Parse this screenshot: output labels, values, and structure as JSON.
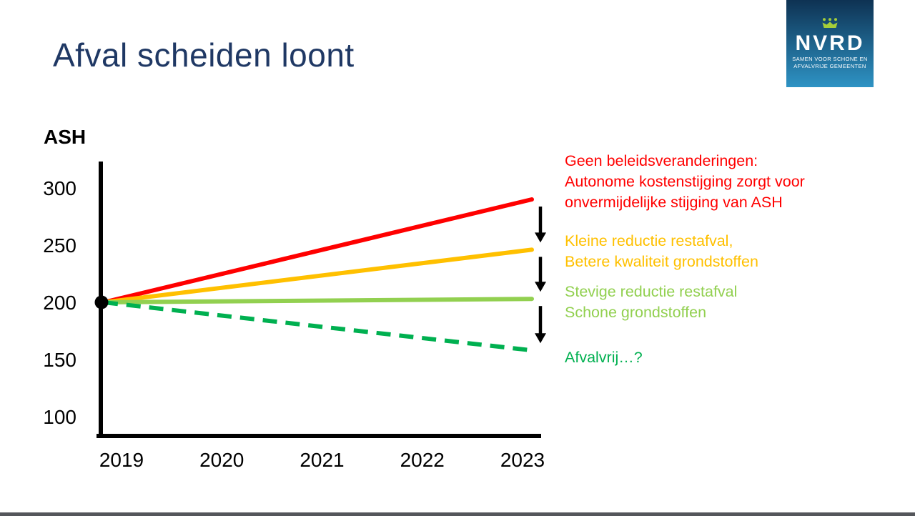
{
  "slide": {
    "title": "Afval scheiden loont",
    "title_color": "#1f3864",
    "background": "#ffffff",
    "footer_bar_color": "#54565b"
  },
  "logo": {
    "wordmark": "NVRD",
    "tagline_line1": "SAMEN VOOR SCHONE EN",
    "tagline_line2": "AFVALVRIJE GEMEENTEN",
    "bg_gradient_top": "#0e3253",
    "bg_gradient_bottom": "#2e93c4",
    "crown_color": "#a6ce39",
    "text_color": "#ffffff"
  },
  "chart_data": {
    "type": "line",
    "title": "ASH",
    "xlabel": "",
    "ylabel": "ASH",
    "x": [
      2019,
      2020,
      2021,
      2022,
      2023
    ],
    "y_ticks": [
      300,
      250,
      200,
      150,
      100
    ],
    "ylim": [
      83,
      324
    ],
    "grid": false,
    "legend_position": "right-annotations",
    "axis_color": "#000000",
    "start_marker": {
      "x": 2019,
      "value": 200,
      "color": "#000000"
    },
    "series": [
      {
        "name": "Geen beleidsveranderingen",
        "color": "#ff0000",
        "dashed": false,
        "x": [
          2019,
          2023
        ],
        "values": [
          200,
          290
        ]
      },
      {
        "name": "Kleine reductie restafval",
        "color": "#ffc000",
        "dashed": false,
        "x": [
          2019,
          2023
        ],
        "values": [
          200,
          246
        ]
      },
      {
        "name": "Stevige reductie restafval",
        "color": "#92d050",
        "dashed": false,
        "x": [
          2019,
          2023
        ],
        "values": [
          200,
          203
        ]
      },
      {
        "name": "Afvalvrij",
        "color": "#00b050",
        "dashed": true,
        "x": [
          2019,
          2023
        ],
        "values": [
          200,
          158
        ]
      }
    ],
    "arrow_color": "#000000"
  },
  "annotations": [
    {
      "color": "#ff0000",
      "lines": [
        "Geen beleidsveranderingen:",
        "Autonome kostenstijging zorgt voor",
        "onvermijdelijke stijging van ASH"
      ]
    },
    {
      "color": "#ffc000",
      "lines": [
        "Kleine reductie restafval,",
        "Betere kwaliteit grondstoffen"
      ]
    },
    {
      "color": "#92d050",
      "lines": [
        "Stevige reductie restafval",
        "Schone grondstoffen"
      ]
    },
    {
      "color": "#00b050",
      "lines": [
        "Afvalvrij…?"
      ]
    }
  ]
}
